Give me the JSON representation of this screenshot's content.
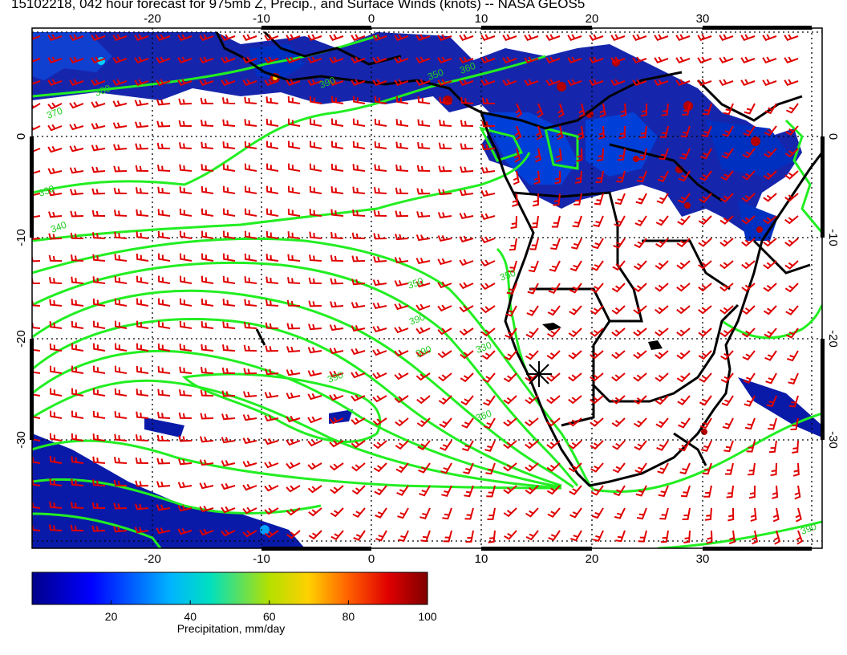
{
  "title": "15102218, 042 hour forecast for 975mb Z, Precip., and Surface Winds (knots) -- NASA GEOS5",
  "map": {
    "lon_ticks": [
      "-20",
      "-10",
      "0",
      "10",
      "20",
      "30"
    ],
    "lat_ticks": [
      "0",
      "-10",
      "-20",
      "-30"
    ],
    "contour_labels": [
      "370",
      "380",
      "390",
      "350",
      "360",
      "330",
      "340",
      "350",
      "390",
      "390",
      "390",
      "360",
      "330",
      "350",
      "390"
    ],
    "colors": {
      "land_border": "#000000",
      "contour": "#00ee00",
      "wind_barb": "#e00000",
      "precip_low": "#000080",
      "precip_high": "#800000"
    },
    "icons": [
      "location-marker-icon"
    ]
  },
  "colorbar": {
    "ticks": [
      "20",
      "40",
      "60",
      "80",
      "100"
    ],
    "label": "Precipitation, mm/day",
    "range": [
      0,
      100
    ]
  }
}
